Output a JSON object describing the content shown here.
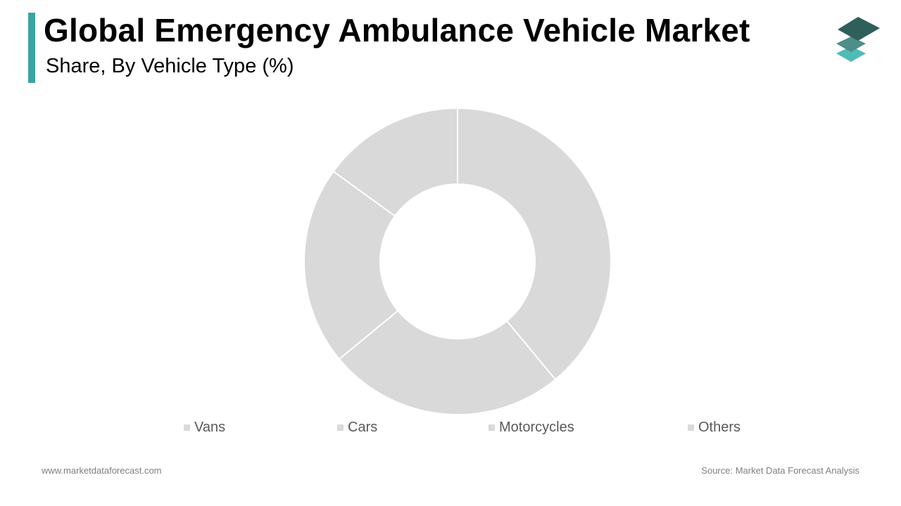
{
  "header": {
    "title": "Global Emergency Ambulance Vehicle Market",
    "subtitle": "Share, By Vehicle Type (%)"
  },
  "logo": {
    "icon": "stacked-layers-icon",
    "colors": [
      "#2f5f5b",
      "#4e8e89",
      "#4fbcb5"
    ]
  },
  "chart_data": {
    "type": "pie",
    "variant": "donut",
    "title": "",
    "categories": [
      "Vans",
      "Cars",
      "Motorcycles",
      "Others"
    ],
    "values": [
      39,
      25,
      21,
      15
    ],
    "colors": [
      "#d9d9d9",
      "#d9d9d9",
      "#d9d9d9",
      "#d9d9d9"
    ],
    "legend_position": "bottom"
  },
  "footer": {
    "website": "www.marketdataforecast.com",
    "source": "Source: Market Data Forecast Analysis"
  }
}
